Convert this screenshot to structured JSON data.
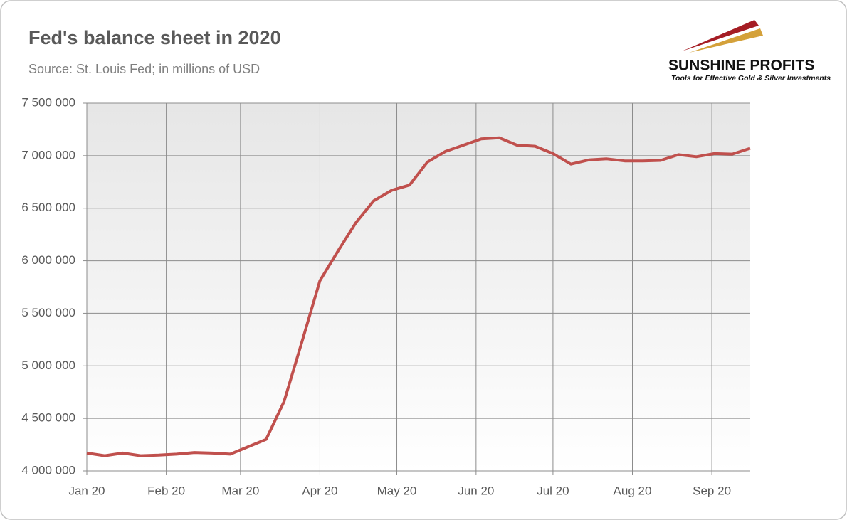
{
  "chart_data": {
    "type": "line",
    "title": "Fed's balance sheet in 2020",
    "subtitle": "Source: St. Louis Fed; in millions of USD",
    "logo": {
      "name": "SUNSHINE PROFITS",
      "tagline": "Tools for Effective Gold & Silver Investments"
    },
    "x": [
      0,
      1,
      2,
      3,
      4,
      5,
      6,
      7,
      8,
      9,
      10,
      11,
      12,
      13,
      14,
      15,
      16,
      17,
      18,
      19,
      20,
      21,
      22,
      23,
      24,
      25,
      26,
      27,
      28,
      29,
      30,
      31,
      32,
      33,
      34,
      35,
      36,
      37
    ],
    "series": [
      {
        "name": "Fed's balance sheet",
        "color": "#c0504d",
        "values": [
          4170000,
          4145000,
          4170000,
          4145000,
          4150000,
          4160000,
          4175000,
          4170000,
          4160000,
          4230000,
          4300000,
          4660000,
          5230000,
          5810000,
          6090000,
          6360000,
          6570000,
          6670000,
          6720000,
          6940000,
          7040000,
          7100000,
          7160000,
          7170000,
          7100000,
          7090000,
          7020000,
          6920000,
          6960000,
          6970000,
          6950000,
          6950000,
          6955000,
          7010000,
          6990000,
          7020000,
          7015000,
          7070000
        ]
      }
    ],
    "xlim": [
      0,
      37
    ],
    "xticks": [
      {
        "value": 0,
        "label": "Jan 20"
      },
      {
        "value": 4.43,
        "label": "Feb 20"
      },
      {
        "value": 8.57,
        "label": "Mar 20"
      },
      {
        "value": 13,
        "label": "Apr 20"
      },
      {
        "value": 17.29,
        "label": "May 20"
      },
      {
        "value": 21.71,
        "label": "Jun 20"
      },
      {
        "value": 26,
        "label": "Jul 20"
      },
      {
        "value": 30.43,
        "label": "Aug 20"
      },
      {
        "value": 34.86,
        "label": "Sep 20"
      }
    ],
    "ylim": [
      4000000,
      7500000
    ],
    "yticks": [
      {
        "value": 4000000,
        "label": "4 000 000"
      },
      {
        "value": 4500000,
        "label": "4 500 000"
      },
      {
        "value": 5000000,
        "label": "5 000 000"
      },
      {
        "value": 5500000,
        "label": "5 500 000"
      },
      {
        "value": 6000000,
        "label": "6 000 000"
      },
      {
        "value": 6500000,
        "label": "6 500 000"
      },
      {
        "value": 7000000,
        "label": "7 000 000"
      },
      {
        "value": 7500000,
        "label": "7 500 000"
      }
    ],
    "grid": true
  }
}
